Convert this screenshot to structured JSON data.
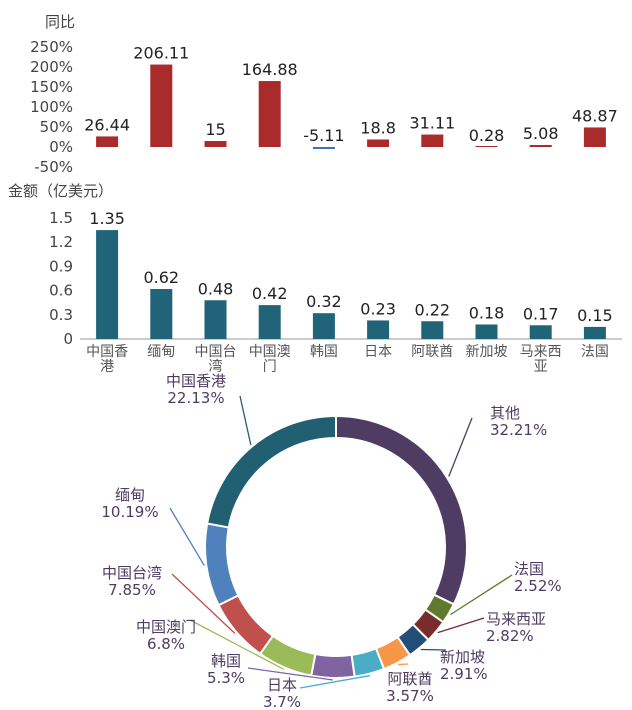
{
  "chart_data": [
    {
      "type": "bar",
      "ylabel": "同比",
      "categories": [
        "中国香港",
        "缅甸",
        "中国台湾",
        "中国澳门",
        "韩国",
        "日本",
        "阿联酋",
        "新加坡",
        "马来西亚",
        "法国"
      ],
      "values": [
        26.44,
        206.11,
        15,
        164.88,
        -5.11,
        18.8,
        31.11,
        0.28,
        5.08,
        48.87
      ],
      "value_labels": [
        "26.44",
        "206.11",
        "15",
        "164.88",
        "-5.11",
        "18.8",
        "31.11",
        "0.28",
        "5.08",
        "48.87"
      ],
      "yticks": [
        "250%",
        "200%",
        "150%",
        "100%",
        "50%",
        "0%",
        "-50%"
      ],
      "ylim": [
        -50,
        250
      ],
      "colors": {
        "positive": "#a92b2b",
        "negative": "#3f73b8"
      }
    },
    {
      "type": "bar",
      "ylabel": "金额（亿美元）",
      "categories": [
        "中国香港",
        "缅甸",
        "中国台湾",
        "中国澳门",
        "韩国",
        "日本",
        "阿联酋",
        "新加坡",
        "马来西亚",
        "法国"
      ],
      "category_labels": [
        [
          "中国香",
          "港"
        ],
        [
          "缅甸"
        ],
        [
          "中国台",
          "湾"
        ],
        [
          "中国澳",
          "门"
        ],
        [
          "韩国"
        ],
        [
          "日本"
        ],
        [
          "阿联酋"
        ],
        [
          "新加坡"
        ],
        [
          "马来西",
          "亚"
        ],
        [
          "法国"
        ]
      ],
      "values": [
        1.35,
        0.62,
        0.48,
        0.42,
        0.32,
        0.23,
        0.22,
        0.18,
        0.17,
        0.15
      ],
      "value_labels": [
        "1.35",
        "0.62",
        "0.48",
        "0.42",
        "0.32",
        "0.23",
        "0.22",
        "0.18",
        "0.17",
        "0.15"
      ],
      "yticks": [
        "1.5",
        "1.2",
        "0.9",
        "0.6",
        "0.3",
        "0"
      ],
      "ylim": [
        0,
        1.5
      ],
      "color": "#216378"
    },
    {
      "type": "pie",
      "donut": true,
      "start": "top, clockwise",
      "slices": [
        {
          "name": "其他",
          "value": 32.21,
          "label": "32.21%",
          "color": "#4e3c63"
        },
        {
          "name": "法国",
          "value": 2.52,
          "label": "2.52%",
          "color": "#5f7a2b"
        },
        {
          "name": "马来西亚",
          "value": 2.82,
          "label": "2.82%",
          "color": "#7a2b2b"
        },
        {
          "name": "新加坡",
          "value": 2.91,
          "label": "2.91%",
          "color": "#234e78"
        },
        {
          "name": "阿联酋",
          "value": 3.57,
          "label": "3.57%",
          "color": "#f79646"
        },
        {
          "name": "日本",
          "value": 3.7,
          "label": "3.7%",
          "color": "#4bacc6"
        },
        {
          "name": "韩国",
          "value": 5.3,
          "label": "5.3%",
          "color": "#8064a2"
        },
        {
          "name": "中国澳门",
          "value": 6.8,
          "label": "6.8%",
          "color": "#9bbb59"
        },
        {
          "name": "中国台湾",
          "value": 7.85,
          "label": "7.85%",
          "color": "#c0504d"
        },
        {
          "name": "缅甸",
          "value": 10.19,
          "label": "10.19%",
          "color": "#4f81bd"
        },
        {
          "name": "中国香港",
          "value": 22.13,
          "label": "22.13%",
          "color": "#215f72"
        }
      ],
      "label_color": "#4e3c63"
    }
  ]
}
